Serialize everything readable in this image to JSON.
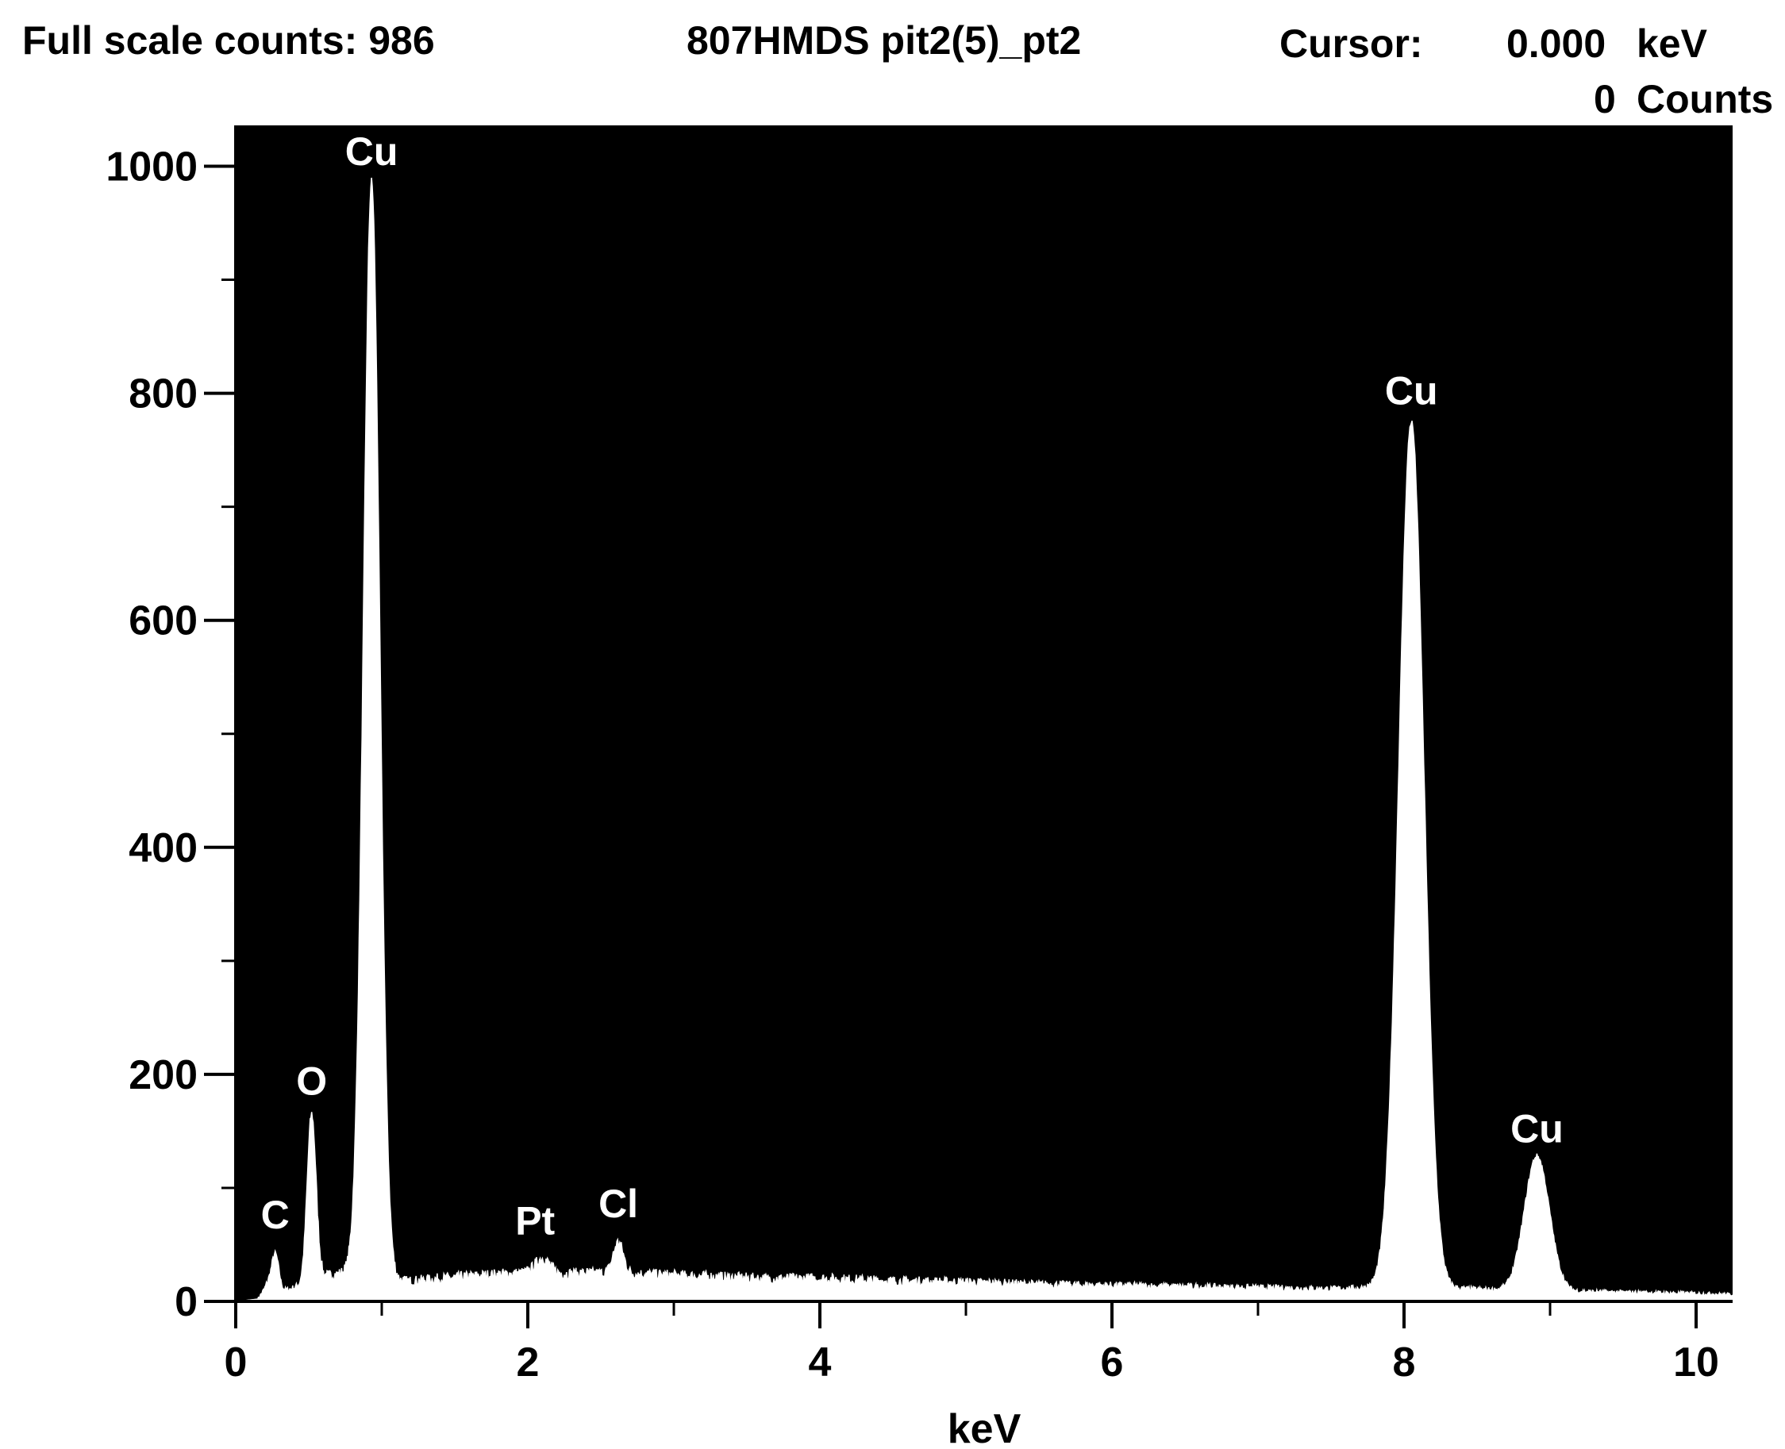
{
  "header": {
    "full_scale_label": "Full scale counts: 986",
    "sample_name": "807HMDS pit2(5)_pt2",
    "cursor_label": "Cursor:",
    "cursor_kev_value": "0.000",
    "cursor_kev_unit": "keV",
    "cursor_counts_value": "0",
    "cursor_counts_unit": "Counts"
  },
  "chart_data": {
    "type": "line",
    "title": "807HMDS pit2(5)_pt2",
    "xlabel": "keV",
    "ylabel": "",
    "xlim": [
      0,
      10.25
    ],
    "ylim": [
      0,
      1036
    ],
    "x_ticks": [
      0,
      2,
      4,
      6,
      8,
      10
    ],
    "y_ticks": [
      0,
      200,
      400,
      600,
      800,
      1000
    ],
    "plot_background": "#000000",
    "trace_color": "#ffffff",
    "grid": false,
    "legend": "none",
    "baseline": [
      [
        0.0,
        0
      ],
      [
        0.15,
        2
      ],
      [
        0.22,
        15
      ],
      [
        0.3,
        8
      ],
      [
        0.4,
        12
      ],
      [
        0.6,
        22
      ],
      [
        0.8,
        26
      ],
      [
        1.0,
        18
      ],
      [
        1.2,
        18
      ],
      [
        1.4,
        20
      ],
      [
        1.6,
        22
      ],
      [
        1.8,
        24
      ],
      [
        2.0,
        25
      ],
      [
        2.2,
        24
      ],
      [
        2.4,
        25
      ],
      [
        2.8,
        24
      ],
      [
        3.2,
        22
      ],
      [
        3.6,
        20
      ],
      [
        4.0,
        20
      ],
      [
        4.5,
        18
      ],
      [
        5.0,
        17
      ],
      [
        5.5,
        15
      ],
      [
        6.0,
        14
      ],
      [
        6.5,
        13
      ],
      [
        7.0,
        12
      ],
      [
        7.5,
        11
      ],
      [
        7.8,
        12
      ],
      [
        8.2,
        12
      ],
      [
        8.6,
        10
      ],
      [
        9.0,
        9
      ],
      [
        9.5,
        8
      ],
      [
        10.0,
        7
      ],
      [
        10.25,
        6
      ]
    ],
    "peaks": [
      {
        "element": "C",
        "kev": 0.27,
        "counts": 42,
        "width": 0.025
      },
      {
        "element": "O",
        "kev": 0.52,
        "counts": 165,
        "width": 0.03
      },
      {
        "element": "Cu",
        "kev": 0.93,
        "counts": 986,
        "width": 0.055
      },
      {
        "element": "Pt",
        "kev": 2.1,
        "counts": 38,
        "width": 0.05
      },
      {
        "element": "Cl",
        "kev": 2.62,
        "counts": 52,
        "width": 0.035
      },
      {
        "element": "Cu",
        "kev": 8.05,
        "counts": 775,
        "width": 0.085
      },
      {
        "element": "Cu",
        "kev": 8.91,
        "counts": 128,
        "width": 0.085
      }
    ],
    "peak_labels": [
      {
        "text": "C",
        "kev": 0.27,
        "counts": 60
      },
      {
        "text": "O",
        "kev": 0.52,
        "counts": 178
      },
      {
        "text": "Cu",
        "kev": 0.93,
        "counts": 997
      },
      {
        "text": "Pt",
        "kev": 2.05,
        "counts": 55
      },
      {
        "text": "Cl",
        "kev": 2.62,
        "counts": 70
      },
      {
        "text": "Cu",
        "kev": 8.05,
        "counts": 786
      },
      {
        "text": "Cu",
        "kev": 8.91,
        "counts": 136
      }
    ]
  }
}
